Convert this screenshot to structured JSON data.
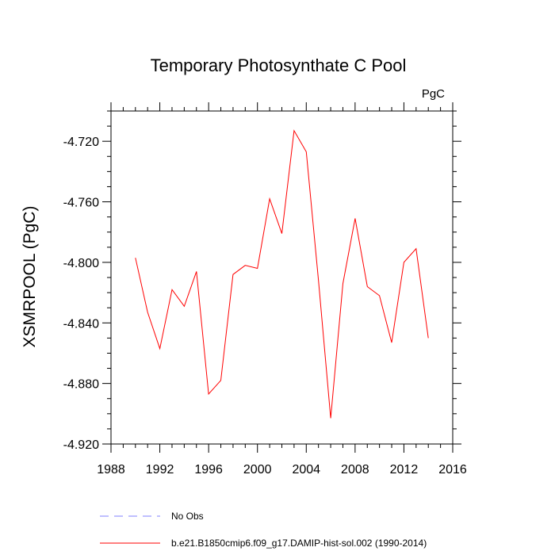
{
  "chart_data": {
    "type": "line",
    "title": "Temporary Photosynthate C Pool",
    "units_label": "PgC",
    "ylabel": "XSMRPOOL  (PgC)",
    "xlabel": "",
    "xlim": [
      1988,
      2016
    ],
    "ylim": [
      -4.92,
      -4.7
    ],
    "x_ticks": [
      1988,
      1992,
      1996,
      2000,
      2004,
      2008,
      2012,
      2016
    ],
    "x_tick_labels": [
      "1988",
      "1992",
      "1996",
      "2000",
      "2004",
      "2008",
      "2012",
      "2016"
    ],
    "y_ticks": [
      -4.92,
      -4.88,
      -4.84,
      -4.8,
      -4.76,
      -4.72
    ],
    "y_tick_labels": [
      "-4.920",
      "-4.880",
      "-4.840",
      "-4.800",
      "-4.760",
      "-4.720"
    ],
    "grid": false,
    "legend_position": "bottom",
    "series": [
      {
        "name": "b.e21.B1850cmip6.f09_g17.DAMIP-hist-sol.002 (1990-2014)",
        "color": "#ff0000",
        "style": "solid",
        "x": [
          1990,
          1991,
          1992,
          1993,
          1994,
          1995,
          1996,
          1997,
          1998,
          1999,
          2000,
          2001,
          2002,
          2003,
          2004,
          2005,
          2006,
          2007,
          2008,
          2009,
          2010,
          2011,
          2012,
          2013,
          2014
        ],
        "y": [
          -4.797,
          -4.833,
          -4.857,
          -4.818,
          -4.829,
          -4.806,
          -4.887,
          -4.878,
          -4.808,
          -4.802,
          -4.804,
          -4.758,
          -4.781,
          -4.713,
          -4.727,
          -4.812,
          -4.903,
          -4.814,
          -4.771,
          -4.816,
          -4.822,
          -4.853,
          -4.8,
          -4.791,
          -4.85
        ]
      }
    ],
    "legend": [
      {
        "label": "No Obs",
        "color": "#8080ff",
        "style": "dashed"
      },
      {
        "label": "b.e21.B1850cmip6.f09_g17.DAMIP-hist-sol.002 (1990-2014)",
        "color": "#ff0000",
        "style": "solid"
      }
    ]
  }
}
